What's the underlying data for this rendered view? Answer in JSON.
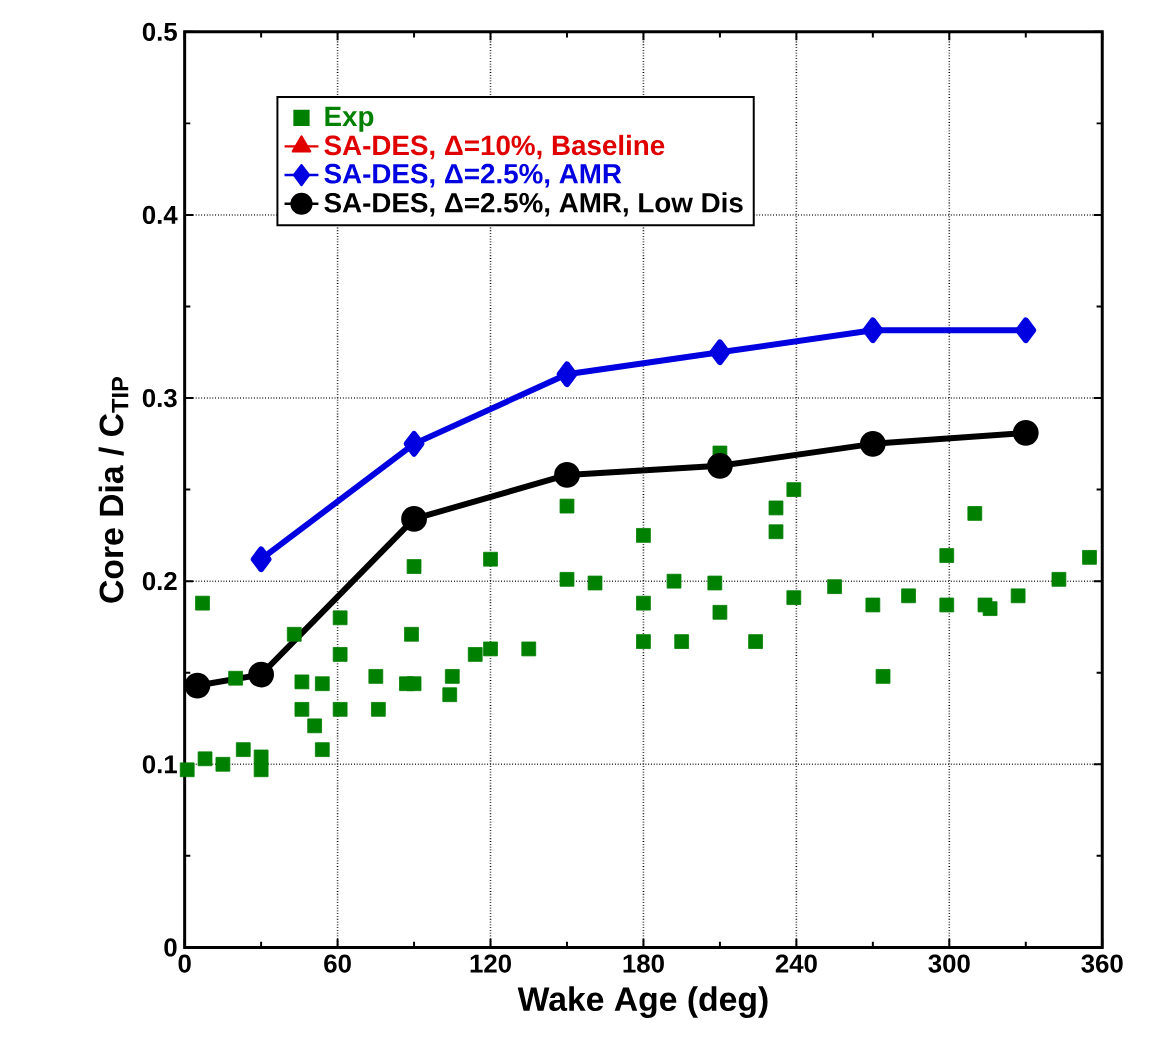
{
  "chart_data": {
    "type": "line",
    "xlabel": "Wake Age (deg)",
    "ylabel": "Core Dia / C$_{TIP}$",
    "xlim": [
      0,
      360
    ],
    "ylim": [
      0,
      0.5
    ],
    "xticks": [
      0,
      60,
      120,
      180,
      240,
      300,
      360
    ],
    "yticks": [
      0,
      0.1,
      0.2,
      0.3,
      0.4,
      0.5
    ],
    "grid": true,
    "legend": "top left",
    "series": [
      {
        "name": "Exp",
        "type": "scatter",
        "marker": "square",
        "color": "#008000",
        "x": [
          1,
          7,
          8,
          15,
          23,
          30,
          30,
          20,
          43,
          46,
          46,
          51,
          54,
          54,
          61,
          61,
          61,
          75,
          76,
          87,
          90,
          89,
          90,
          104,
          105,
          114,
          120,
          120,
          135,
          150,
          150,
          161,
          180,
          180,
          180,
          192,
          195,
          208,
          210,
          210,
          224,
          232,
          232,
          239,
          239,
          255,
          270,
          274,
          284,
          299,
          299,
          310,
          314,
          316,
          327,
          343,
          355
        ],
        "values": [
          0.097,
          0.188,
          0.103,
          0.1,
          0.108,
          0.104,
          0.097,
          0.147,
          0.171,
          0.145,
          0.13,
          0.121,
          0.144,
          0.108,
          0.18,
          0.16,
          0.13,
          0.148,
          0.13,
          0.144,
          0.144,
          0.171,
          0.208,
          0.138,
          0.148,
          0.16,
          0.163,
          0.212,
          0.163,
          0.241,
          0.201,
          0.199,
          0.225,
          0.188,
          0.167,
          0.2,
          0.167,
          0.199,
          0.27,
          0.183,
          0.167,
          0.24,
          0.227,
          0.25,
          0.191,
          0.197,
          0.187,
          0.148,
          0.192,
          0.214,
          0.187,
          0.237,
          0.187,
          0.185,
          0.192,
          0.201,
          0.213
        ]
      },
      {
        "name": "SA-DES, Δ=10%, Baseline",
        "marker": "triangle",
        "color": "#e00000"
      },
      {
        "name": "SA-DES, Δ=2.5%, AMR",
        "marker": "diamond",
        "color": "#0000e0",
        "x": [
          30,
          90,
          150,
          210,
          270,
          330
        ],
        "values": [
          0.212,
          0.275,
          0.313,
          0.325,
          0.337,
          0.337
        ]
      },
      {
        "name": "SA-DES, Δ=2.5%, AMR, Low Dis",
        "marker": "circle",
        "color": "#000000",
        "x": [
          5,
          30,
          90,
          150,
          210,
          270,
          330
        ],
        "values": [
          0.143,
          0.149,
          0.234,
          0.258,
          0.263,
          0.275,
          0.281
        ]
      }
    ]
  }
}
